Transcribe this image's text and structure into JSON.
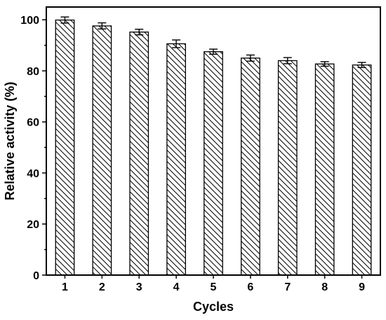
{
  "chart_data": {
    "type": "bar",
    "title": "",
    "xlabel": "Cycles",
    "ylabel": "Relative activity (%)",
    "categories": [
      "1",
      "2",
      "3",
      "4",
      "5",
      "6",
      "7",
      "8",
      "9"
    ],
    "values": [
      99.9,
      97.6,
      95.2,
      90.6,
      87.5,
      85.0,
      84.0,
      82.7,
      82.3
    ],
    "errors": [
      1.2,
      1.2,
      1.1,
      1.5,
      1.0,
      1.2,
      1.2,
      0.9,
      1.0
    ],
    "ylim": [
      0,
      105
    ],
    "yticks": [
      0,
      20,
      40,
      60,
      80,
      100
    ],
    "grid": false,
    "legend": false,
    "bar_fill": "diagonal-hatch",
    "colors": {
      "bar_edge": "#000000",
      "hatch": "#000000",
      "background": "#ffffff"
    }
  }
}
